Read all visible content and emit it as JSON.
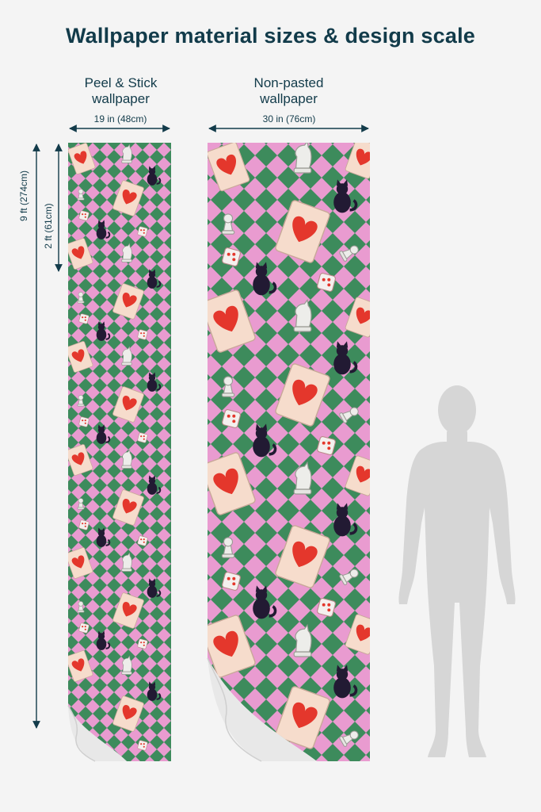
{
  "title": "Wallpaper material sizes & design scale",
  "peel": {
    "label_line1": "Peel & Stick",
    "label_line2": "wallpaper",
    "width_label": "19 in (48cm)"
  },
  "nonpasted": {
    "label_line1": "Non-pasted",
    "label_line2": "wallpaper",
    "width_label": "30 in (76cm)"
  },
  "height_total_label": "9 ft (274cm)",
  "height_repeat_label": "2 ft (61cm)",
  "colors": {
    "background": "#f4f4f4",
    "text": "#123b4a",
    "pink": "#e99bd0",
    "green": "#3d8b5c",
    "card": "#f6dccc",
    "heart": "#e4372c",
    "cat": "#221a33",
    "figure": "#d6d6d6"
  },
  "icons": [
    "heart-card-icon",
    "cat-icon",
    "chess-knight-icon",
    "chess-pawn-icon",
    "dice-icon",
    "human-figure-icon"
  ]
}
